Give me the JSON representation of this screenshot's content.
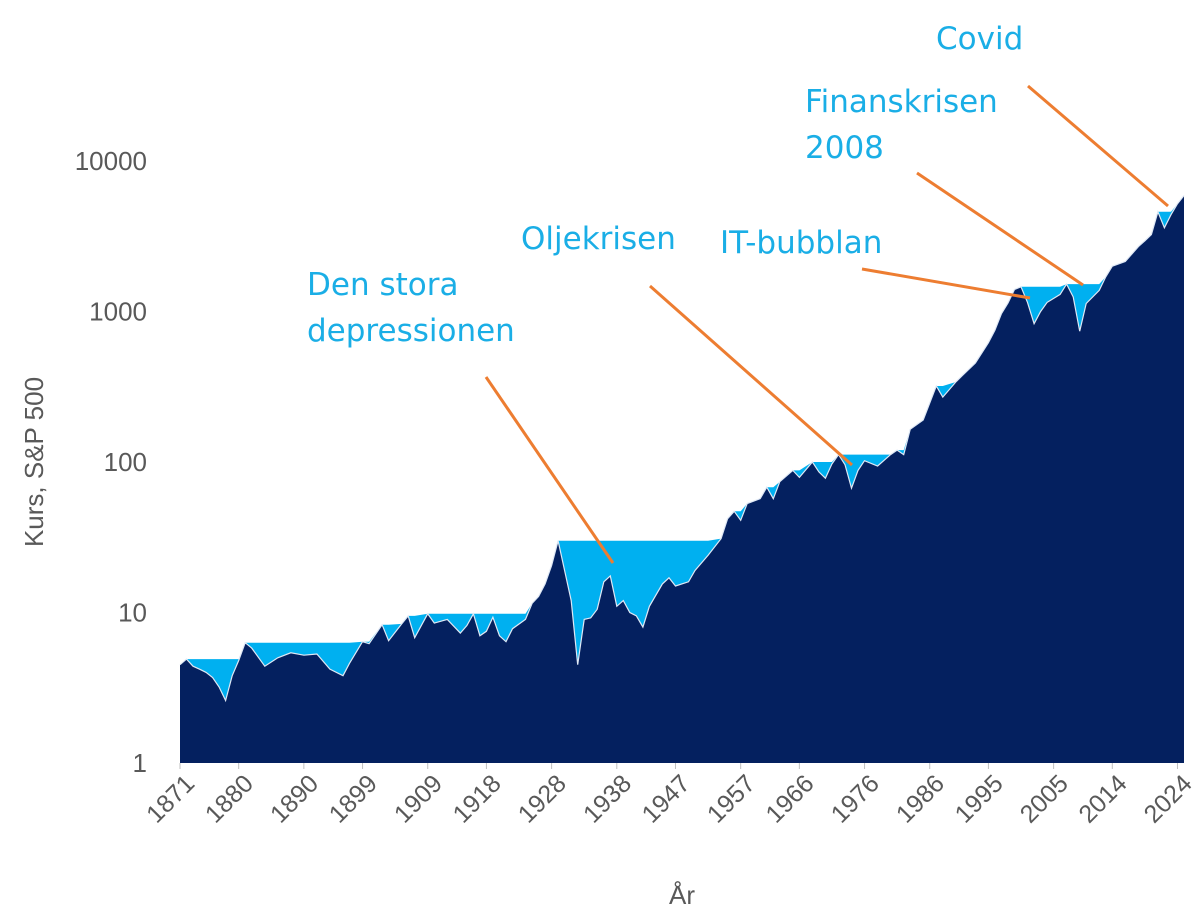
{
  "chart_data": {
    "type": "area",
    "title": "",
    "xlabel": "År",
    "ylabel": "Kurs, S&P 500",
    "y_scale": "log",
    "ylim": [
      1,
      30000
    ],
    "xlim": [
      1871,
      2025
    ],
    "y_ticks": [
      "1",
      "10",
      "100",
      "1000",
      "10000"
    ],
    "x_ticks": [
      "1871",
      "1880",
      "1890",
      "1899",
      "1909",
      "1918",
      "1928",
      "1938",
      "1947",
      "1957",
      "1966",
      "1976",
      "1986",
      "1995",
      "2005",
      "2014",
      "2024"
    ],
    "colors": {
      "price_area": "#04205f",
      "drawdown_area": "#00b0f0",
      "annotation_text": "#1aaee6",
      "callout_line": "#ed7d31"
    },
    "series": [
      {
        "name": "",
        "x": [
          1871,
          1872,
          1873,
          1874,
          1875,
          1876,
          1877,
          1878,
          1879,
          1880,
          1881,
          1882,
          1884,
          1886,
          1888,
          1890,
          1892,
          1894,
          1896,
          1897,
          1899,
          1900,
          1902,
          1903,
          1905,
          1906,
          1907,
          1909,
          1910,
          1912,
          1914,
          1915,
          1916,
          1917,
          1918,
          1919,
          1920,
          1921,
          1922,
          1924,
          1925,
          1926,
          1927,
          1928,
          1929,
          1930,
          1931,
          1932,
          1933,
          1934,
          1935,
          1936,
          1937,
          1938,
          1939,
          1940,
          1941,
          1942,
          1943,
          1945,
          1946,
          1947,
          1949,
          1950,
          1952,
          1954,
          1955,
          1956,
          1957,
          1958,
          1960,
          1961,
          1962,
          1963,
          1965,
          1966,
          1968,
          1969,
          1970,
          1971,
          1972,
          1973,
          1974,
          1975,
          1976,
          1978,
          1980,
          1981,
          1982,
          1983,
          1985,
          1987,
          1988,
          1990,
          1991,
          1993,
          1995,
          1996,
          1997,
          1998,
          1999,
          2000,
          2001,
          2002,
          2003,
          2004,
          2006,
          2007,
          2008,
          2009,
          2010,
          2012,
          2013,
          2014,
          2016,
          2018,
          2019,
          2020,
          2021,
          2022,
          2023,
          2024,
          2025
        ],
        "values": [
          4.5,
          4.9,
          4.4,
          4.2,
          4.0,
          3.7,
          3.2,
          2.6,
          3.8,
          4.8,
          6.3,
          5.8,
          4.4,
          5.0,
          5.4,
          5.2,
          5.3,
          4.2,
          3.8,
          4.6,
          6.4,
          6.2,
          8.3,
          6.5,
          8.4,
          9.5,
          6.8,
          9.8,
          8.5,
          9.0,
          7.3,
          8.2,
          9.8,
          7.0,
          7.5,
          9.3,
          7.0,
          6.4,
          7.8,
          9.0,
          11.5,
          12.8,
          15.5,
          20.5,
          30.0,
          19.0,
          12.0,
          4.5,
          9.0,
          9.2,
          10.5,
          16.0,
          17.5,
          11.0,
          12.0,
          10.0,
          9.5,
          8.0,
          11.0,
          15.5,
          17.0,
          15.0,
          16.0,
          19.0,
          24.0,
          31.0,
          42.0,
          47.0,
          41.0,
          53.0,
          57.0,
          68.0,
          57.0,
          74.0,
          88.0,
          79.0,
          100.0,
          86.0,
          78.0,
          97.0,
          112.0,
          96.0,
          67.0,
          88.0,
          102.0,
          94.0,
          112.0,
          120.0,
          112.0,
          165.0,
          190.0,
          320.0,
          270.0,
          340.0,
          375.0,
          455.0,
          620.0,
          750.0,
          970.0,
          1140.0,
          1400.0,
          1460.0,
          1150.0,
          830.0,
          1000.0,
          1150.0,
          1300.0,
          1520.0,
          1250.0,
          740.0,
          1130.0,
          1380.0,
          1700.0,
          2000.0,
          2150.0,
          2700.0,
          2950.0,
          3250.0,
          4600.0,
          3600.0,
          4400.0,
          5200.0,
          5900.0
        ]
      }
    ],
    "annotations": [
      {
        "text": "Den stora",
        "text2": "depressionen"
      },
      {
        "text": "Oljekrisen"
      },
      {
        "text": "IT-bubblan"
      },
      {
        "text": "Finanskrisen",
        "text2": "2008"
      },
      {
        "text": "Covid"
      }
    ]
  }
}
